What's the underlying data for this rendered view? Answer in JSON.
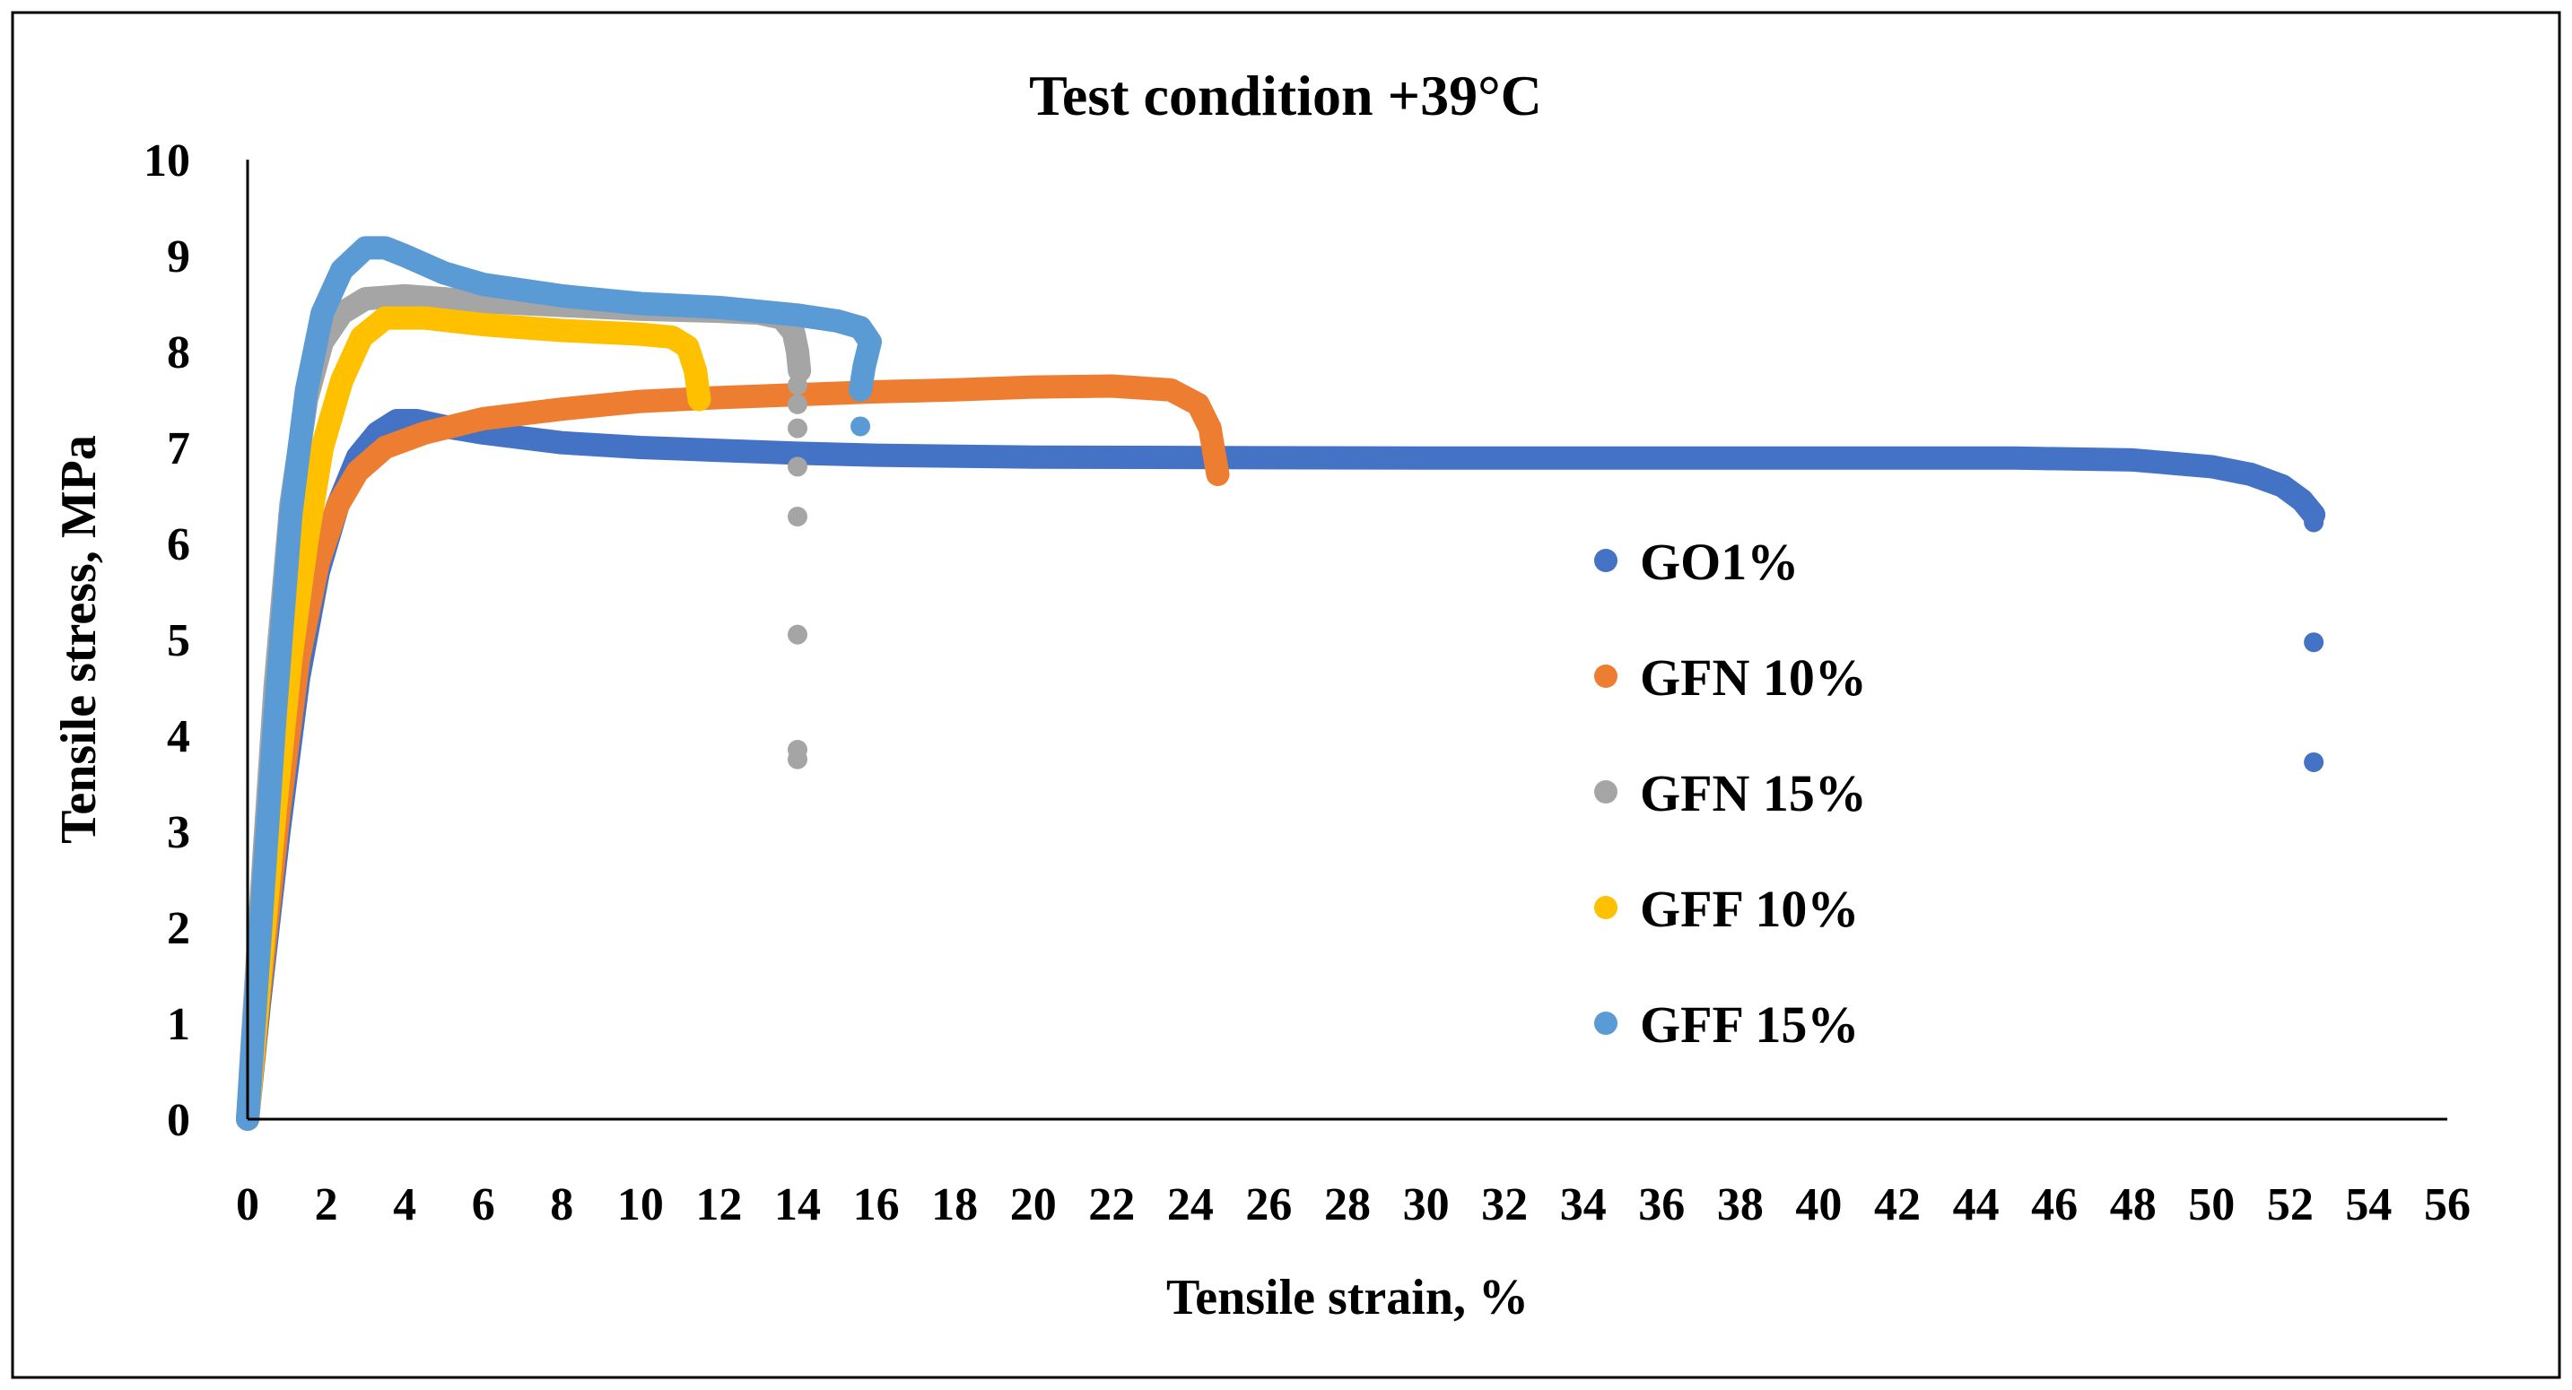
{
  "chart_data": {
    "type": "scatter",
    "title": "Test condition +39°C",
    "xlabel": "Tensile strain, %",
    "ylabel": "Tensile stress, MPa",
    "xlim": [
      0,
      56
    ],
    "ylim": [
      0,
      10
    ],
    "xticks": [
      "0",
      "2",
      "4",
      "6",
      "8",
      "10",
      "12",
      "14",
      "16",
      "18",
      "20",
      "22",
      "24",
      "26",
      "28",
      "30",
      "32",
      "34",
      "36",
      "38",
      "40",
      "42",
      "44",
      "46",
      "48",
      "50",
      "52",
      "54",
      "56"
    ],
    "yticks": [
      "0",
      "1",
      "2",
      "3",
      "4",
      "5",
      "6",
      "7",
      "8",
      "9",
      "10"
    ],
    "grid": false,
    "legend_position": "right",
    "series": [
      {
        "name": "GO1%",
        "color": "#4472C4",
        "curve": [
          [
            0,
            0
          ],
          [
            0.3,
            1.2
          ],
          [
            0.8,
            3
          ],
          [
            1.3,
            4.6
          ],
          [
            1.8,
            5.7
          ],
          [
            2.3,
            6.4
          ],
          [
            2.8,
            6.9
          ],
          [
            3.3,
            7.15
          ],
          [
            3.8,
            7.28
          ],
          [
            4.3,
            7.28
          ],
          [
            5,
            7.22
          ],
          [
            6,
            7.15
          ],
          [
            8,
            7.05
          ],
          [
            10,
            7.0
          ],
          [
            12,
            6.97
          ],
          [
            14,
            6.94
          ],
          [
            16,
            6.92
          ],
          [
            20,
            6.9
          ],
          [
            30,
            6.89
          ],
          [
            40,
            6.89
          ],
          [
            45,
            6.89
          ],
          [
            48,
            6.87
          ],
          [
            50,
            6.8
          ],
          [
            51,
            6.72
          ],
          [
            51.8,
            6.6
          ],
          [
            52.3,
            6.45
          ],
          [
            52.6,
            6.3
          ]
        ],
        "points": [
          [
            52.6,
            6.22
          ],
          [
            52.6,
            4.97
          ],
          [
            52.6,
            3.72
          ]
        ]
      },
      {
        "name": "GFN 10%",
        "color": "#ED7D31",
        "curve": [
          [
            0,
            0
          ],
          [
            0.3,
            1.3
          ],
          [
            0.8,
            3.2
          ],
          [
            1.3,
            4.8
          ],
          [
            1.8,
            5.8
          ],
          [
            2.3,
            6.4
          ],
          [
            2.8,
            6.75
          ],
          [
            3.5,
            7.0
          ],
          [
            4.5,
            7.15
          ],
          [
            6,
            7.3
          ],
          [
            8,
            7.4
          ],
          [
            10,
            7.48
          ],
          [
            12,
            7.52
          ],
          [
            14,
            7.55
          ],
          [
            16,
            7.58
          ],
          [
            18,
            7.6
          ],
          [
            20,
            7.63
          ],
          [
            22,
            7.64
          ],
          [
            23.5,
            7.6
          ],
          [
            24.2,
            7.45
          ],
          [
            24.5,
            7.2
          ],
          [
            24.6,
            6.95
          ],
          [
            24.7,
            6.72
          ]
        ],
        "points": []
      },
      {
        "name": "GFN 15%",
        "color": "#A5A5A5",
        "curve": [
          [
            0,
            0
          ],
          [
            0.3,
            2.0
          ],
          [
            0.7,
            4.5
          ],
          [
            1.1,
            6.4
          ],
          [
            1.5,
            7.5
          ],
          [
            1.9,
            8.1
          ],
          [
            2.4,
            8.4
          ],
          [
            3,
            8.55
          ],
          [
            4,
            8.58
          ],
          [
            5,
            8.55
          ],
          [
            6,
            8.52
          ],
          [
            8,
            8.48
          ],
          [
            10,
            8.44
          ],
          [
            12,
            8.42
          ],
          [
            13,
            8.4
          ],
          [
            13.6,
            8.35
          ],
          [
            13.9,
            8.2
          ],
          [
            14,
            8.0
          ],
          [
            14.05,
            7.8
          ]
        ],
        "points": [
          [
            14,
            7.65
          ],
          [
            14,
            7.45
          ],
          [
            14,
            7.2
          ],
          [
            14,
            6.8
          ],
          [
            14,
            6.28
          ],
          [
            14,
            5.05
          ],
          [
            14,
            3.85
          ],
          [
            14,
            3.75
          ],
          [
            0,
            0.1
          ]
        ]
      },
      {
        "name": "GFF 10%",
        "color": "#FFC000",
        "curve": [
          [
            0,
            0
          ],
          [
            0.3,
            1.4
          ],
          [
            0.7,
            3.2
          ],
          [
            1.1,
            4.8
          ],
          [
            1.5,
            6.0
          ],
          [
            1.9,
            7.0
          ],
          [
            2.4,
            7.7
          ],
          [
            2.9,
            8.15
          ],
          [
            3.5,
            8.35
          ],
          [
            4.5,
            8.35
          ],
          [
            6,
            8.28
          ],
          [
            8,
            8.22
          ],
          [
            10,
            8.18
          ],
          [
            10.8,
            8.15
          ],
          [
            11.2,
            8.05
          ],
          [
            11.4,
            7.8
          ],
          [
            11.5,
            7.5
          ]
        ],
        "points": []
      },
      {
        "name": "GFF 15%",
        "color": "#5B9BD5",
        "curve": [
          [
            0,
            0
          ],
          [
            0.3,
            1.8
          ],
          [
            0.7,
            4.2
          ],
          [
            1.1,
            6.3
          ],
          [
            1.5,
            7.6
          ],
          [
            1.9,
            8.4
          ],
          [
            2.4,
            8.85
          ],
          [
            3,
            9.08
          ],
          [
            3.5,
            9.08
          ],
          [
            4,
            9.0
          ],
          [
            5,
            8.82
          ],
          [
            6,
            8.7
          ],
          [
            8,
            8.58
          ],
          [
            10,
            8.5
          ],
          [
            12,
            8.46
          ],
          [
            14,
            8.38
          ],
          [
            15,
            8.32
          ],
          [
            15.6,
            8.25
          ],
          [
            15.85,
            8.1
          ],
          [
            15.7,
            7.85
          ],
          [
            15.6,
            7.6
          ]
        ],
        "points": [
          [
            15.6,
            7.22
          ]
        ]
      }
    ]
  }
}
